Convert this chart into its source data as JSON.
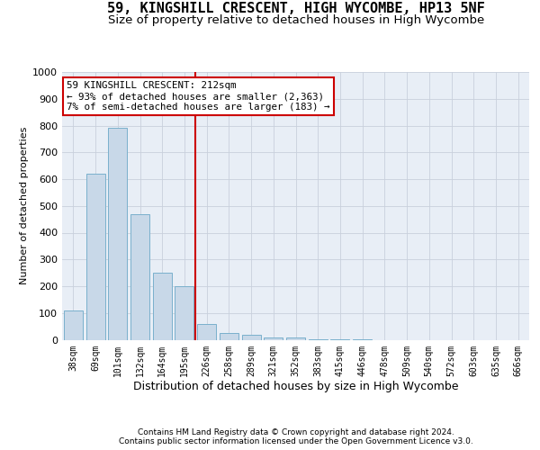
{
  "title": "59, KINGSHILL CRESCENT, HIGH WYCOMBE, HP13 5NF",
  "subtitle": "Size of property relative to detached houses in High Wycombe",
  "xlabel": "Distribution of detached houses by size in High Wycombe",
  "ylabel": "Number of detached properties",
  "bins": [
    "38sqm",
    "69sqm",
    "101sqm",
    "132sqm",
    "164sqm",
    "195sqm",
    "226sqm",
    "258sqm",
    "289sqm",
    "321sqm",
    "352sqm",
    "383sqm",
    "415sqm",
    "446sqm",
    "478sqm",
    "509sqm",
    "540sqm",
    "572sqm",
    "603sqm",
    "635sqm",
    "666sqm"
  ],
  "values": [
    110,
    620,
    790,
    470,
    250,
    200,
    60,
    25,
    18,
    10,
    10,
    2,
    1,
    1,
    0,
    0,
    0,
    0,
    0,
    0,
    0
  ],
  "bar_color": "#c8d8e8",
  "bar_edge_color": "#7ab0cc",
  "red_line_x": 5.5,
  "annotation_line1": "59 KINGSHILL CRESCENT: 212sqm",
  "annotation_line2": "← 93% of detached houses are smaller (2,363)",
  "annotation_line3": "7% of semi-detached houses are larger (183) →",
  "ylim": [
    0,
    1000
  ],
  "yticks": [
    0,
    100,
    200,
    300,
    400,
    500,
    600,
    700,
    800,
    900,
    1000
  ],
  "axes_background": "#e8eef6",
  "footer_line1": "Contains HM Land Registry data © Crown copyright and database right 2024.",
  "footer_line2": "Contains public sector information licensed under the Open Government Licence v3.0.",
  "title_fontsize": 11,
  "subtitle_fontsize": 9.5,
  "annotation_box_facecolor": "#ffffff",
  "annotation_box_edgecolor": "#cc0000",
  "red_line_color": "#cc0000",
  "grid_color": "#c8d0dc"
}
